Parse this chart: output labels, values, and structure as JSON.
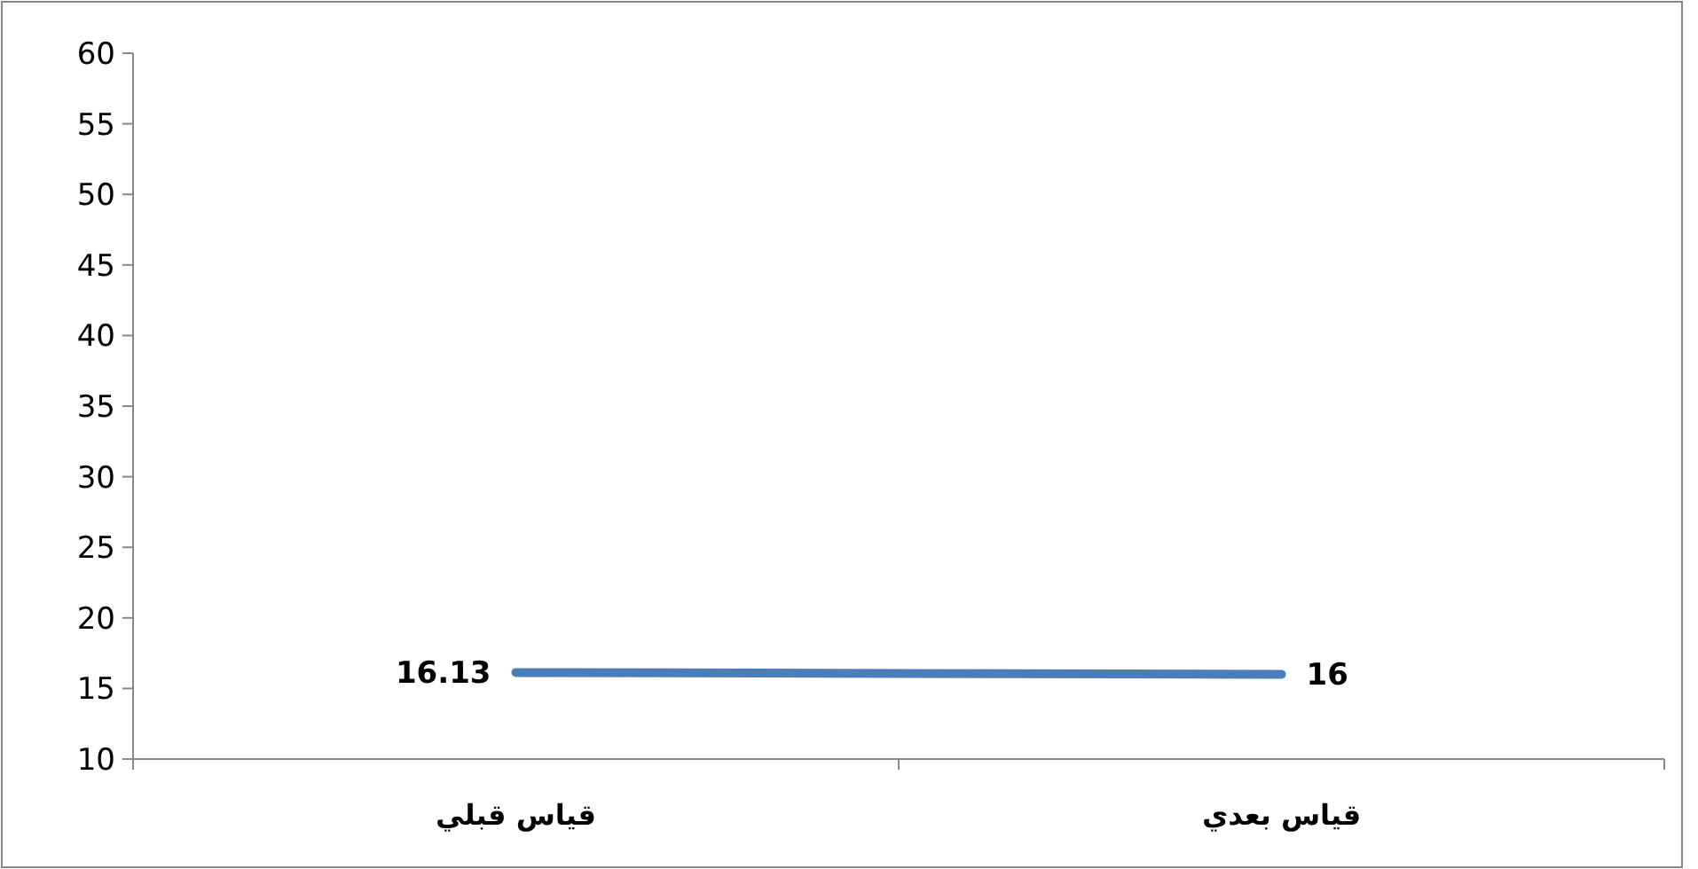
{
  "chart_data": {
    "type": "line",
    "categories": [
      "قياس قبلي",
      "قياس بعدي"
    ],
    "series": [
      {
        "color": "#4a7ebb",
        "values": [
          16.13,
          16
        ]
      }
    ],
    "ylim": [
      10,
      60
    ],
    "yticks": [
      10,
      15,
      20,
      25,
      30,
      35,
      40,
      45,
      50,
      55,
      60
    ],
    "data_labels": true,
    "grid": false
  }
}
